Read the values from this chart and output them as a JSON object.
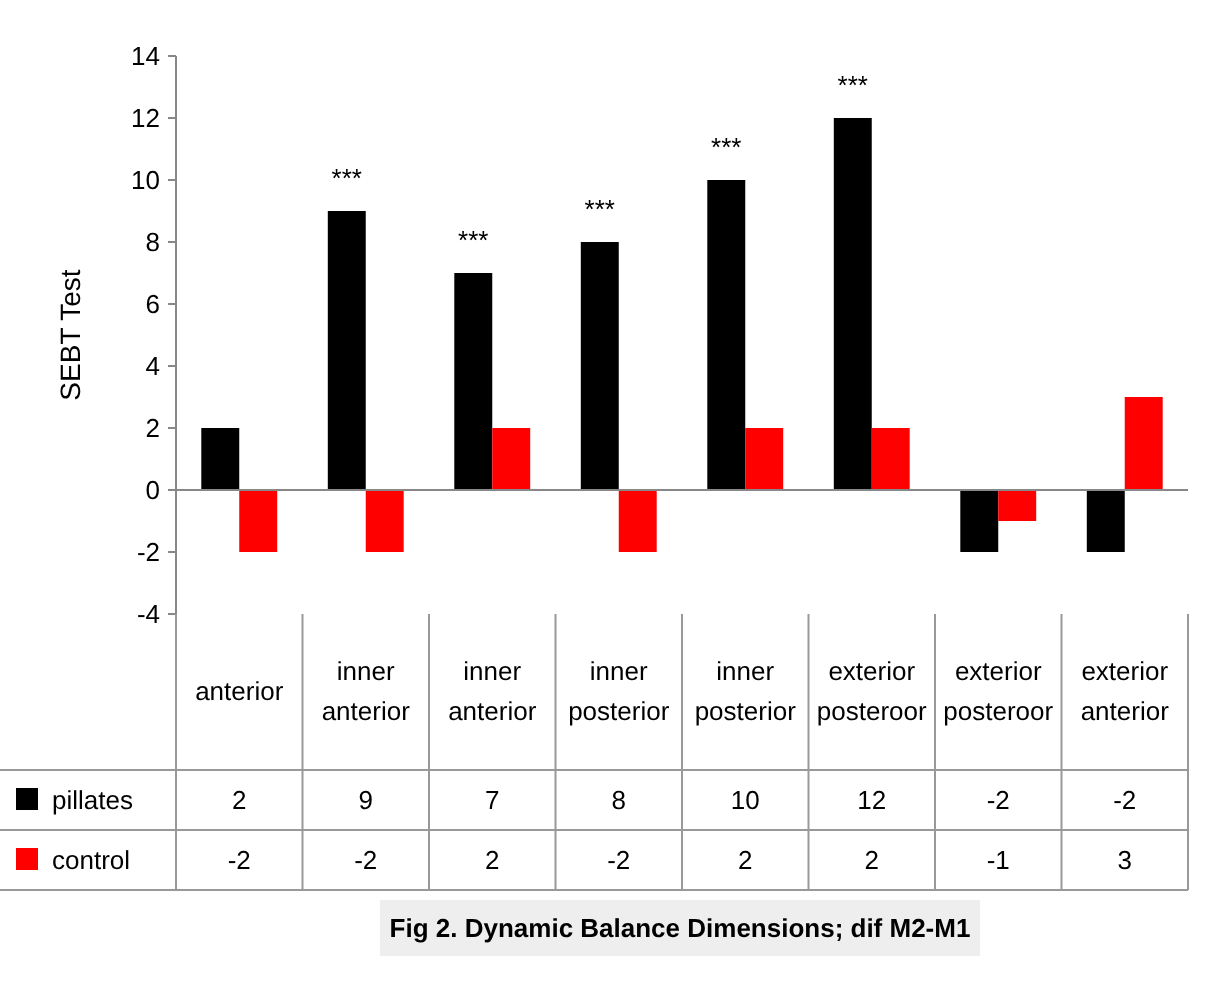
{
  "chart_data": {
    "type": "bar",
    "title": "Fig 2. Dynamic Balance Dimensions; dif M2-M1",
    "ylabel": "SEBT Test",
    "categories": [
      "anterior",
      "inner anterior",
      "inner anterior",
      "inner posterior",
      "inner posterior",
      "exterior posteroor",
      "exterior posteroor",
      "exterior anterior"
    ],
    "series": [
      {
        "name": "pillates",
        "color": "#000000",
        "values": [
          2,
          9,
          7,
          8,
          10,
          12,
          -2,
          -2
        ]
      },
      {
        "name": "control",
        "color": "#ff0000",
        "values": [
          -2,
          -2,
          2,
          -2,
          2,
          2,
          -1,
          3
        ]
      }
    ],
    "ylim": [
      -4,
      14
    ],
    "yticks": [
      -4,
      -2,
      0,
      2,
      4,
      6,
      8,
      10,
      12,
      14
    ],
    "data_labels": true,
    "legend": "bottom",
    "annotations": [
      {
        "text": "***",
        "x": "inner anterior",
        "y": 9
      },
      "***",
      {
        "text": "***",
        "x": "inner posterior",
        "y": 8
      },
      "***",
      {
        "text": "***",
        "x": "exterior posteroor",
        "y": 12
      }
    ]
  }
}
